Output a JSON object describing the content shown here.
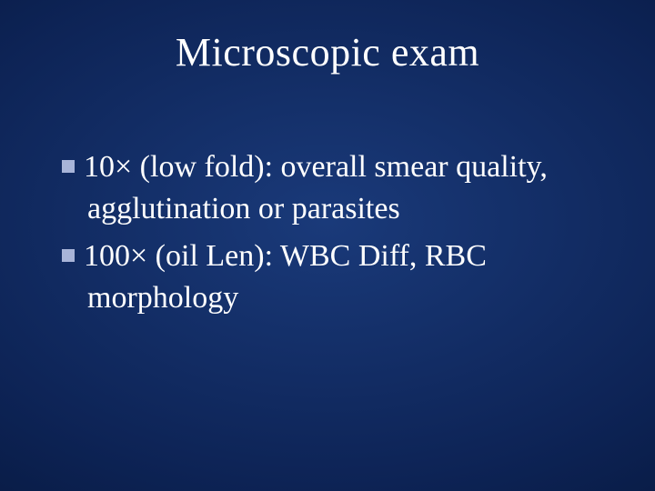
{
  "slide": {
    "title": "Microscopic exam",
    "bullets": [
      "10× (low fold): overall smear quality, agglutination or parasites",
      "100× (oil Len): WBC Diff, RBC morphology"
    ],
    "title_fontsize": 44,
    "body_fontsize": 34,
    "title_color": "#ffffff",
    "body_color": "#ffffff",
    "bullet_marker_color": "#a8b4d8",
    "background_gradient": {
      "center": "#1a3a7a",
      "mid": "#0d2355",
      "outer": "#051538",
      "edge": "#020a20"
    },
    "font_family": "Times New Roman"
  }
}
